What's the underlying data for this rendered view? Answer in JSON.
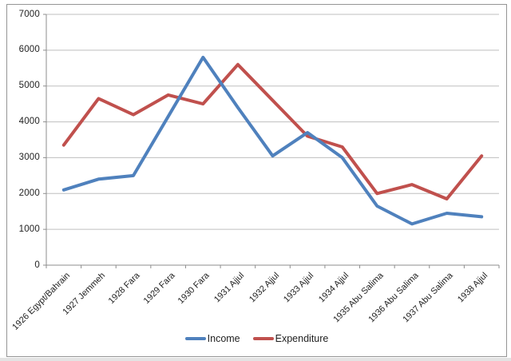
{
  "chart_data": {
    "type": "line",
    "title": "",
    "xlabel": "",
    "ylabel": "",
    "categories": [
      "1926 Egypt/Bahrain",
      "1927 Jemmeh",
      "1928 Fara",
      "1929 Fara",
      "1930 Fara",
      "1931 Ajjul",
      "1932 Ajjul",
      "1933 Ajjul",
      "1934 Ajjul",
      "1935 Abu Salima",
      "1936 Abu Salima",
      "1937 Abu Salima",
      "1938 Ajjul"
    ],
    "series": [
      {
        "name": "Income",
        "color": "#4F81BD",
        "values": [
          2100,
          2400,
          2500,
          4150,
          5800,
          4400,
          3050,
          3700,
          3000,
          1650,
          1150,
          1450,
          1350
        ]
      },
      {
        "name": "Expenditure",
        "color": "#C0504D",
        "values": [
          3350,
          4650,
          4200,
          4750,
          4500,
          5600,
          4600,
          3600,
          3300,
          2000,
          2250,
          1850,
          3050
        ]
      }
    ],
    "ylim": [
      0,
      7000
    ],
    "ytick_step": 1000,
    "ytick_labels": [
      "0",
      "1000",
      "2000",
      "3000",
      "4000",
      "5000",
      "6000",
      "7000"
    ],
    "grid": "horizontal",
    "legend_position": "bottom-center",
    "colors": {
      "gridline": "#BFBFBF",
      "axis": "#8E8E8E",
      "text": "#1F1F1F",
      "frame_border": "#959595"
    }
  }
}
